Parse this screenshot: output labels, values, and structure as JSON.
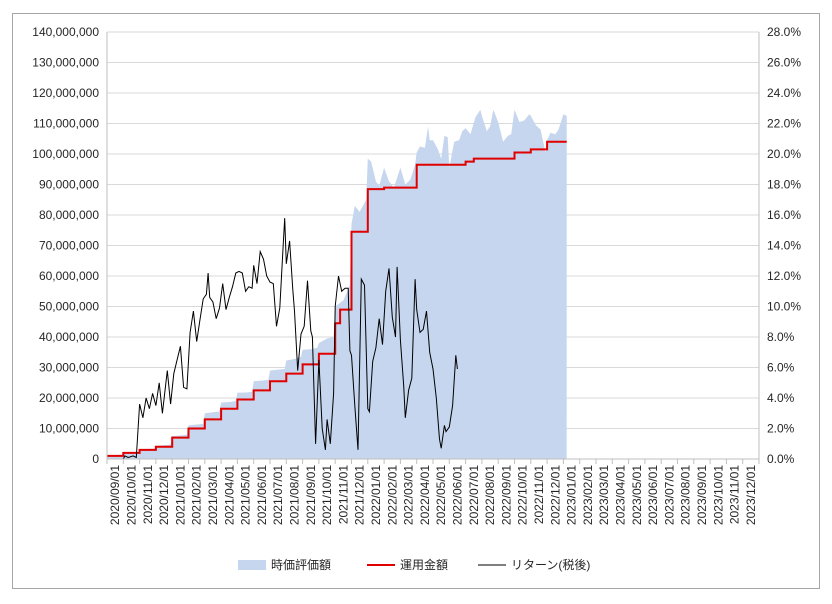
{
  "chart_data": {
    "type": "area",
    "title": "",
    "xlabel": "",
    "ylabel": "",
    "ylabel_right": "",
    "ylim": [
      0,
      140000000
    ],
    "y_ticks": [
      "0",
      "10,000,000",
      "20,000,000",
      "30,000,000",
      "40,000,000",
      "50,000,000",
      "60,000,000",
      "70,000,000",
      "80,000,000",
      "90,000,000",
      "100,000,000",
      "110,000,000",
      "120,000,000",
      "130,000,000",
      "140,000,000"
    ],
    "y2lim": [
      0,
      0.28
    ],
    "y2_ticks": [
      "0.0%",
      "2.0%",
      "4.0%",
      "6.0%",
      "8.0%",
      "10.0%",
      "12.0%",
      "14.0%",
      "16.0%",
      "18.0%",
      "20.0%",
      "22.0%",
      "24.0%",
      "26.0%",
      "28.0%"
    ],
    "x_categories": [
      "2020/09/01",
      "2020/10/01",
      "2020/11/01",
      "2020/12/01",
      "2021/01/01",
      "2021/02/01",
      "2021/03/01",
      "2021/04/01",
      "2021/05/01",
      "2021/06/01",
      "2021/07/01",
      "2021/08/01",
      "2021/09/01",
      "2021/10/01",
      "2021/11/01",
      "2021/12/01",
      "2022/01/01",
      "2022/02/01",
      "2022/03/01",
      "2022/04/01",
      "2022/05/01",
      "2022/06/01",
      "2022/07/01",
      "2022/08/01",
      "2022/09/01",
      "2022/10/01",
      "2022/11/01",
      "2022/12/01",
      "2023/01/01",
      "2023/02/01",
      "2023/03/01",
      "2023/04/01",
      "2023/05/01",
      "2023/06/01",
      "2023/07/01",
      "2023/08/01",
      "2023/09/01",
      "2023/10/01",
      "2023/11/01",
      "2023/12/01"
    ],
    "legend_position": "bottom",
    "grid": true,
    "series": [
      {
        "name": "時価評価額",
        "kind": "area",
        "axis": "left",
        "color": "#c5d6ee",
        "points": [
          [
            0,
            1000000
          ],
          [
            0.5,
            1050000
          ],
          [
            0.9,
            1100000
          ],
          [
            1.0,
            2000000
          ],
          [
            1.5,
            2100000
          ],
          [
            1.9,
            2300000
          ],
          [
            2.0,
            3200000
          ],
          [
            2.5,
            3300000
          ],
          [
            2.9,
            3400000
          ],
          [
            3.0,
            4300000
          ],
          [
            3.5,
            4500000
          ],
          [
            3.9,
            4700000
          ],
          [
            4.0,
            7500000
          ],
          [
            4.5,
            7700000
          ],
          [
            4.9,
            8000000
          ],
          [
            5.0,
            11000000
          ],
          [
            5.5,
            11300000
          ],
          [
            5.9,
            11500000
          ],
          [
            6.0,
            15000000
          ],
          [
            6.5,
            15300000
          ],
          [
            6.9,
            15600000
          ],
          [
            7.0,
            18500000
          ],
          [
            7.5,
            18700000
          ],
          [
            7.9,
            19000000
          ],
          [
            8.0,
            21700000
          ],
          [
            8.5,
            21800000
          ],
          [
            8.9,
            22000000
          ],
          [
            9.0,
            25500000
          ],
          [
            9.5,
            25700000
          ],
          [
            9.9,
            26000000
          ],
          [
            10.0,
            29000000
          ],
          [
            10.5,
            29300000
          ],
          [
            10.9,
            29500000
          ],
          [
            11.0,
            32300000
          ],
          [
            11.5,
            32800000
          ],
          [
            11.9,
            33500000
          ],
          [
            12.0,
            35800000
          ],
          [
            12.5,
            36000000
          ],
          [
            12.9,
            36500000
          ],
          [
            13.0,
            38000000
          ],
          [
            13.5,
            39500000
          ],
          [
            13.9,
            40000000
          ],
          [
            14.0,
            50000000
          ],
          [
            14.5,
            52000000
          ],
          [
            14.9,
            57000000
          ],
          [
            15.0,
            77000000
          ],
          [
            15.2,
            83000000
          ],
          [
            15.5,
            81000000
          ],
          [
            15.9,
            85000000
          ],
          [
            16.0,
            98500000
          ],
          [
            16.2,
            97500000
          ],
          [
            16.5,
            91000000
          ],
          [
            16.7,
            89500000
          ],
          [
            17.0,
            95500000
          ],
          [
            17.3,
            91000000
          ],
          [
            17.6,
            89000000
          ],
          [
            18.0,
            95500000
          ],
          [
            18.3,
            90000000
          ],
          [
            18.6,
            91500000
          ],
          [
            18.9,
            96500000
          ],
          [
            19.0,
            100500000
          ],
          [
            19.2,
            102500000
          ],
          [
            19.5,
            102000000
          ],
          [
            19.7,
            109000000
          ],
          [
            19.8,
            104500000
          ],
          [
            20.0,
            104500000
          ],
          [
            20.3,
            101500000
          ],
          [
            20.5,
            98500000
          ],
          [
            20.7,
            106000000
          ],
          [
            20.9,
            105500000
          ],
          [
            21.0,
            95500000
          ],
          [
            21.3,
            104000000
          ],
          [
            21.6,
            104500000
          ],
          [
            21.8,
            107500000
          ],
          [
            22.0,
            108500000
          ],
          [
            22.3,
            106500000
          ],
          [
            22.6,
            112000000
          ],
          [
            22.9,
            114500000
          ],
          [
            23.0,
            112500000
          ],
          [
            23.3,
            107500000
          ],
          [
            23.5,
            109000000
          ],
          [
            23.7,
            114500000
          ],
          [
            24.0,
            110500000
          ],
          [
            24.3,
            104000000
          ],
          [
            24.6,
            106000000
          ],
          [
            24.8,
            106500000
          ],
          [
            25.0,
            114500000
          ],
          [
            25.3,
            110500000
          ],
          [
            25.6,
            111000000
          ],
          [
            25.9,
            113000000
          ],
          [
            26.0,
            112500000
          ],
          [
            26.3,
            109500000
          ],
          [
            26.6,
            108000000
          ],
          [
            26.9,
            100500000
          ],
          [
            27.0,
            104500000
          ],
          [
            27.2,
            107000000
          ],
          [
            27.5,
            106500000
          ],
          [
            27.7,
            108000000
          ],
          [
            28.0,
            113000000
          ],
          [
            28.2,
            112500000
          ]
        ]
      },
      {
        "name": "運用金額",
        "kind": "step",
        "axis": "left",
        "color": "#e00000",
        "points": [
          [
            0,
            1000000
          ],
          [
            1.0,
            2000000
          ],
          [
            2.0,
            3000000
          ],
          [
            3.0,
            4000000
          ],
          [
            4.0,
            7000000
          ],
          [
            5.0,
            10000000
          ],
          [
            6.0,
            13000000
          ],
          [
            7.0,
            16500000
          ],
          [
            8.0,
            19500000
          ],
          [
            9.0,
            22500000
          ],
          [
            10.0,
            25500000
          ],
          [
            11.0,
            28000000
          ],
          [
            12.0,
            31000000
          ],
          [
            13.0,
            34500000
          ],
          [
            14.0,
            44500000
          ],
          [
            14.3,
            49000000
          ],
          [
            15.0,
            74500000
          ],
          [
            16.0,
            88500000
          ],
          [
            17.0,
            89000000
          ],
          [
            19.0,
            96500000
          ],
          [
            22.0,
            97500000
          ],
          [
            22.5,
            98500000
          ],
          [
            25.0,
            100500000
          ],
          [
            26.0,
            101500000
          ],
          [
            27.0,
            104000000
          ],
          [
            28.2,
            104000000
          ]
        ]
      },
      {
        "name": "リターン(税後)",
        "kind": "line",
        "axis": "right",
        "color": "#000000",
        "points": [
          [
            1.0,
            0.0
          ],
          [
            1.1,
            0.002
          ],
          [
            1.3,
            0.001
          ],
          [
            1.6,
            0.002
          ],
          [
            1.8,
            0.001
          ],
          [
            2.0,
            0.036
          ],
          [
            2.2,
            0.027
          ],
          [
            2.4,
            0.04
          ],
          [
            2.6,
            0.033
          ],
          [
            2.8,
            0.043
          ],
          [
            3.0,
            0.035
          ],
          [
            3.2,
            0.05
          ],
          [
            3.4,
            0.03
          ],
          [
            3.7,
            0.058
          ],
          [
            3.9,
            0.036
          ],
          [
            4.1,
            0.056
          ],
          [
            4.3,
            0.065
          ],
          [
            4.5,
            0.074
          ],
          [
            4.7,
            0.047
          ],
          [
            4.9,
            0.046
          ],
          [
            5.1,
            0.083
          ],
          [
            5.3,
            0.097
          ],
          [
            5.5,
            0.077
          ],
          [
            5.7,
            0.091
          ],
          [
            5.9,
            0.105
          ],
          [
            6.1,
            0.108
          ],
          [
            6.2,
            0.122
          ],
          [
            6.3,
            0.106
          ],
          [
            6.5,
            0.103
          ],
          [
            6.7,
            0.092
          ],
          [
            6.9,
            0.099
          ],
          [
            7.1,
            0.115
          ],
          [
            7.3,
            0.098
          ],
          [
            7.5,
            0.106
          ],
          [
            7.7,
            0.113
          ],
          [
            7.9,
            0.122
          ],
          [
            8.1,
            0.123
          ],
          [
            8.3,
            0.122
          ],
          [
            8.5,
            0.11
          ],
          [
            8.7,
            0.113
          ],
          [
            8.9,
            0.112
          ],
          [
            9.0,
            0.127
          ],
          [
            9.2,
            0.115
          ],
          [
            9.4,
            0.136
          ],
          [
            9.6,
            0.131
          ],
          [
            9.8,
            0.12
          ],
          [
            10.0,
            0.116
          ],
          [
            10.2,
            0.115
          ],
          [
            10.4,
            0.087
          ],
          [
            10.6,
            0.099
          ],
          [
            10.8,
            0.138
          ],
          [
            10.9,
            0.158
          ],
          [
            11.0,
            0.128
          ],
          [
            11.2,
            0.143
          ],
          [
            11.4,
            0.111
          ],
          [
            11.5,
            0.097
          ],
          [
            11.7,
            0.058
          ],
          [
            11.9,
            0.082
          ],
          [
            12.1,
            0.087
          ],
          [
            12.3,
            0.117
          ],
          [
            12.5,
            0.084
          ],
          [
            12.6,
            0.08
          ],
          [
            12.8,
            0.01
          ],
          [
            13.0,
            0.065
          ],
          [
            13.2,
            0.02
          ],
          [
            13.4,
            0.006
          ],
          [
            13.5,
            0.026
          ],
          [
            13.7,
            0.01
          ],
          [
            13.9,
            0.043
          ],
          [
            14.0,
            0.1
          ],
          [
            14.2,
            0.12
          ],
          [
            14.4,
            0.11
          ],
          [
            14.6,
            0.112
          ],
          [
            14.8,
            0.112
          ],
          [
            14.9,
            0.071
          ],
          [
            15.0,
            0.068
          ],
          [
            15.2,
            0.035
          ],
          [
            15.4,
            0.006
          ],
          [
            15.6,
            0.118
          ],
          [
            15.8,
            0.114
          ],
          [
            16.0,
            0.033
          ],
          [
            16.1,
            0.031
          ],
          [
            16.3,
            0.064
          ],
          [
            16.5,
            0.073
          ],
          [
            16.7,
            0.092
          ],
          [
            16.9,
            0.075
          ],
          [
            17.1,
            0.11
          ],
          [
            17.3,
            0.125
          ],
          [
            17.5,
            0.093
          ],
          [
            17.7,
            0.08
          ],
          [
            17.8,
            0.126
          ],
          [
            18.0,
            0.078
          ],
          [
            18.2,
            0.048
          ],
          [
            18.3,
            0.027
          ],
          [
            18.5,
            0.045
          ],
          [
            18.7,
            0.053
          ],
          [
            18.9,
            0.118
          ],
          [
            19.0,
            0.098
          ],
          [
            19.2,
            0.083
          ],
          [
            19.4,
            0.085
          ],
          [
            19.6,
            0.097
          ],
          [
            19.8,
            0.07
          ],
          [
            20.0,
            0.059
          ],
          [
            20.2,
            0.04
          ],
          [
            20.4,
            0.013
          ],
          [
            20.5,
            0.007
          ],
          [
            20.7,
            0.022
          ],
          [
            20.8,
            0.018
          ],
          [
            21.0,
            0.021
          ],
          [
            21.2,
            0.035
          ],
          [
            21.4,
            0.068
          ],
          [
            21.5,
            0.059
          ]
        ]
      }
    ]
  }
}
